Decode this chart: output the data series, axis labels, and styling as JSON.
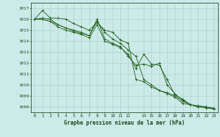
{
  "title": "Graphe pression niveau de la mer (hPa)",
  "bg_color": "#cceae8",
  "grid_color": "#aad4cc",
  "line_color": "#2d6a2d",
  "text_color": "#1a4a1a",
  "xlim": [
    -0.5,
    23.5
  ],
  "ylim": [
    1007.5,
    1017.5
  ],
  "yticks": [
    1008,
    1009,
    1010,
    1011,
    1012,
    1013,
    1014,
    1015,
    1016,
    1017
  ],
  "xtick_positions": [
    0,
    1,
    2,
    3,
    4,
    5,
    6,
    7,
    8,
    9,
    10,
    11,
    12,
    14,
    15,
    16,
    17,
    18,
    19,
    20,
    21,
    22,
    23
  ],
  "xtick_labels": [
    "0",
    "1",
    "2",
    "3",
    "4",
    "5",
    "6",
    "7",
    "8",
    "9",
    "10",
    "11",
    "12",
    "14",
    "15",
    "16",
    "17",
    "18",
    "19",
    "20",
    "21",
    "22",
    "23"
  ],
  "series": [
    [
      1016.0,
      1016.8,
      1016.1,
      1016.1,
      1016.0,
      1015.6,
      1015.3,
      1015.0,
      1015.7,
      1015.0,
      1014.8,
      1014.1,
      1013.8,
      1010.5,
      1010.3,
      1009.8,
      1009.5,
      1009.2,
      1008.9,
      1008.3,
      1008.2,
      1008.0,
      1007.9,
      1007.8
    ],
    [
      1016.0,
      1016.1,
      1016.0,
      1015.5,
      1015.2,
      1015.0,
      1014.8,
      1014.5,
      1015.8,
      1014.8,
      1014.2,
      1013.8,
      1013.2,
      1012.6,
      1010.5,
      1010.0,
      1009.5,
      1009.3,
      1009.0,
      1008.5,
      1008.2,
      1008.1,
      1008.0,
      1007.9
    ],
    [
      1016.0,
      1016.0,
      1015.8,
      1015.5,
      1015.2,
      1014.9,
      1014.7,
      1014.5,
      1016.0,
      1014.2,
      1013.8,
      1013.5,
      1012.6,
      1011.8,
      1011.9,
      1011.7,
      1012.0,
      1010.0,
      1009.2,
      1008.6,
      1008.2,
      1008.0,
      1008.0,
      1007.8
    ],
    [
      1016.0,
      1016.0,
      1015.8,
      1015.3,
      1015.0,
      1014.8,
      1014.6,
      1014.3,
      1015.5,
      1014.0,
      1013.7,
      1013.4,
      1012.8,
      1011.5,
      1012.8,
      1011.9,
      1011.8,
      1010.5,
      1009.1,
      1008.7,
      1008.2,
      1008.0,
      1008.0,
      1007.8
    ]
  ]
}
